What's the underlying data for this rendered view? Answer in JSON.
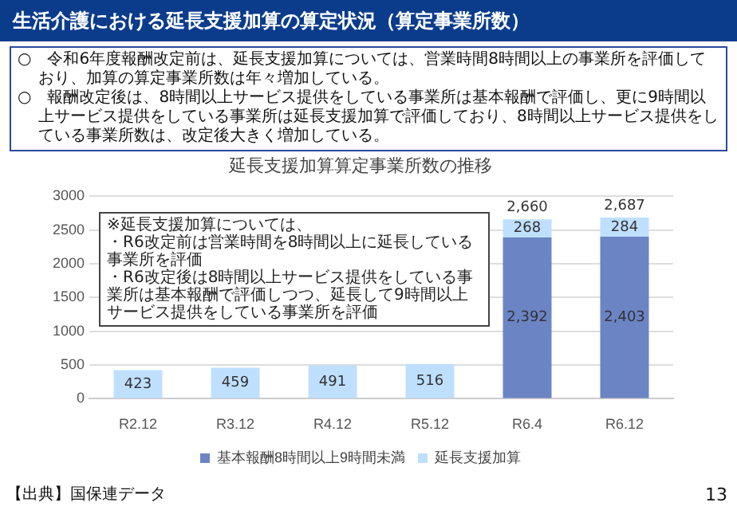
{
  "chart_data": {
    "type": "bar",
    "title": "生活介護における延長支援加算の算定状況（算定事業所数）",
    "subtitle": "延長支援加算算定事業所数の推移",
    "categories": [
      "R2.12",
      "R3.12",
      "R4.12",
      "R5.12",
      "R6.4",
      "R6.12"
    ],
    "series": [
      {
        "name": "基本報酬8時間以上9時間未満",
        "color": "#6b84c4",
        "values": [
          null,
          null,
          null,
          null,
          2392,
          2403
        ],
        "value_labels": [
          null,
          null,
          null,
          null,
          "2,392",
          "2,403"
        ]
      },
      {
        "name": "延長支援加算",
        "color": "#bfdfff",
        "values": [
          423,
          459,
          491,
          516,
          268,
          284
        ],
        "value_labels": [
          "423",
          "459",
          "491",
          "516",
          "268",
          "284"
        ]
      }
    ],
    "stacked": true,
    "totals": [
      null,
      null,
      null,
      null,
      "2,660",
      "2,687"
    ],
    "ylim": [
      0,
      3000
    ],
    "yticks": [
      0,
      500,
      1000,
      1500,
      2000,
      2500,
      3000
    ],
    "grid": "y",
    "legend": "bottom",
    "annotations": [
      "○　令和6年度報酬改定前は、延長支援加算については、営業時間8時間以上の事業所を評価しており、加算の算定事業所数は年々増加している。",
      "○　報酬改定後は、8時間以上サービス提供をしている事業所は基本報酬で評価し、更に9時間以上サービス提供をしている事業所は延長支援加算で評価しており、8時間以上サービス提供をしている事業所数は、改定後大きく増加している。",
      "※延長支援加算については、",
      "・R6改定前は営業時間を8時間以上に延長している事業所を評価",
      "・R6改定後は8時間以上サービス提供をしている事業所は基本報酬で評価しつつ、延長して9時間以上サービス提供をしている事業所を評価",
      "【出典】国保連データ",
      "13"
    ]
  }
}
